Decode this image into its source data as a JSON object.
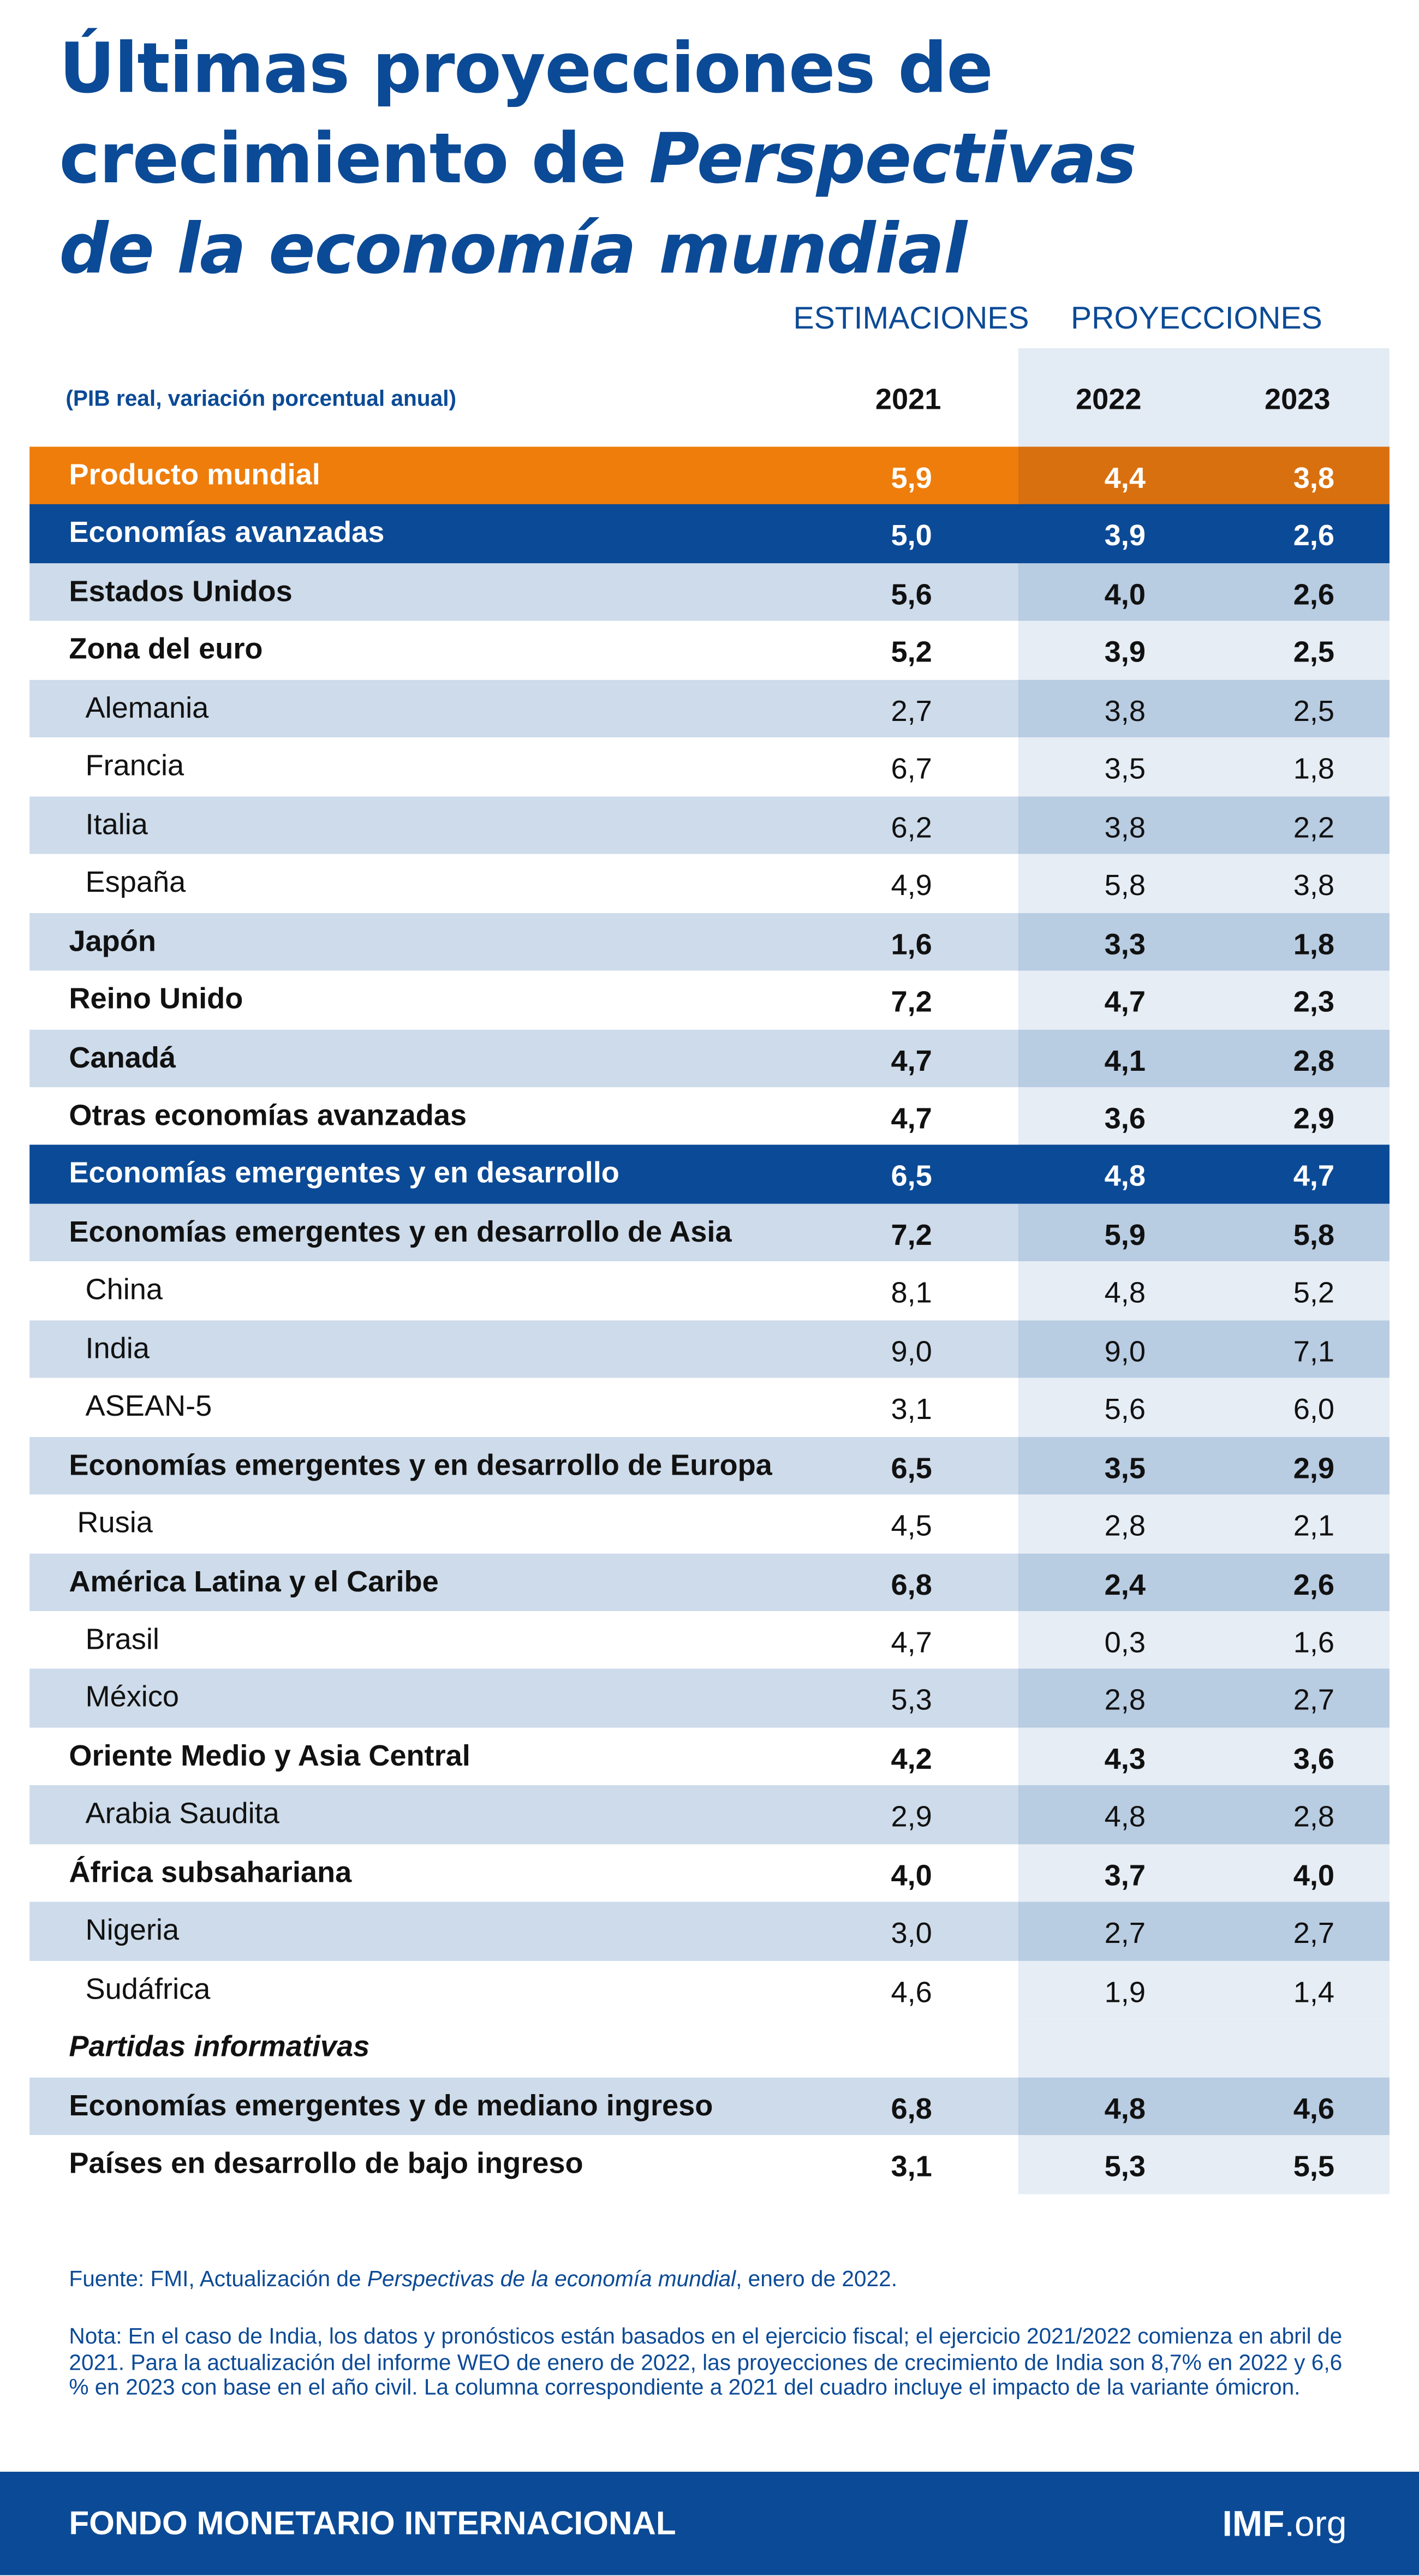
{
  "header": {
    "title": [
      "Últimas proyecciones de",
      "crecimiento de",
      "Perspectivas",
      "de la economía mundial"
    ],
    "estimates": "ESTIMACIONES",
    "projections": "PROYECCIONES",
    "subtitle": "(PIB real, variación porcentual anual)",
    "columns": [
      "2021",
      "2022",
      "2023"
    ]
  },
  "table": {
    "rows": [
      {
        "label": "Producto mundial",
        "values": [
          "5,9",
          "4,4",
          "3,8"
        ]
      },
      {
        "label": "Economías avanzadas",
        "values": [
          "5,0",
          "3,9",
          "2,6"
        ]
      },
      {
        "label": "Estados Unidos",
        "values": [
          "5,6",
          "4,0",
          "2,6"
        ]
      },
      {
        "label": "Zona del euro",
        "values": [
          "5,2",
          "3,9",
          "2,5"
        ]
      },
      {
        "label": "Alemania",
        "values": [
          "2,7",
          "3,8",
          "2,5"
        ]
      },
      {
        "label": "Francia",
        "values": [
          "6,7",
          "3,5",
          "1,8"
        ]
      },
      {
        "label": "Italia",
        "values": [
          "6,2",
          "3,8",
          "2,2"
        ]
      },
      {
        "label": "España",
        "values": [
          "4,9",
          "5,8",
          "3,8"
        ]
      },
      {
        "label": "Japón",
        "values": [
          "1,6",
          "3,3",
          "1,8"
        ]
      },
      {
        "label": "Reino Unido",
        "values": [
          "7,2",
          "4,7",
          "2,3"
        ]
      },
      {
        "label": "Canadá",
        "values": [
          "4,7",
          "4,1",
          "2,8"
        ]
      },
      {
        "label": "Otras economías avanzadas",
        "values": [
          "4,7",
          "3,6",
          "2,9"
        ]
      },
      {
        "label": "Economías emergentes y en desarrollo",
        "values": [
          "6,5",
          "4,8",
          "4,7"
        ]
      },
      {
        "label": "Economías emergentes y en desarrollo de Asia",
        "values": [
          "7,2",
          "5,9",
          "5,8"
        ]
      },
      {
        "label": "China",
        "values": [
          "8,1",
          "4,8",
          "5,2"
        ]
      },
      {
        "label": "India",
        "values": [
          "9,0",
          "9,0",
          "7,1"
        ]
      },
      {
        "label": "ASEAN-5",
        "values": [
          "3,1",
          "5,6",
          "6,0"
        ]
      },
      {
        "label": "Economías emergentes y en desarrollo de Europa",
        "values": [
          "6,5",
          "3,5",
          "2,9"
        ]
      },
      {
        "label": "Rusia",
        "values": [
          "4,5",
          "2,8",
          "2,1"
        ]
      },
      {
        "label": "América Latina y el Caribe",
        "values": [
          "6,8",
          "2,4",
          "2,6"
        ]
      },
      {
        "label": "Brasil",
        "values": [
          "4,7",
          "0,3",
          "1,6"
        ]
      },
      {
        "label": "México",
        "values": [
          "5,3",
          "2,8",
          "2,7"
        ]
      },
      {
        "label": "Oriente Medio y Asia Central",
        "values": [
          "4,2",
          "4,3",
          "3,6"
        ]
      },
      {
        "label": "Arabia Saudita",
        "values": [
          "2,9",
          "4,8",
          "2,8"
        ]
      },
      {
        "label": "África subsahariana",
        "values": [
          "4,0",
          "3,7",
          "4,0"
        ]
      },
      {
        "label": "Nigeria",
        "values": [
          "3,0",
          "2,7",
          "2,7"
        ]
      },
      {
        "label": "Sudáfrica",
        "values": [
          "4,6",
          "1,9",
          "1,4"
        ]
      },
      {
        "label": "Partidas informativas"
      },
      {
        "label": "Economías emergentes y de mediano ingreso",
        "values": [
          "6,8",
          "4,8",
          "4,6"
        ]
      },
      {
        "label": "Países en desarrollo de bajo ingreso",
        "values": [
          "3,1",
          "5,3",
          "5,5"
        ]
      }
    ]
  },
  "notes": {
    "source": [
      "Fuente: FMI, Actualización de",
      "Perspectivas de la economía mundial",
      ", enero de 2022."
    ],
    "note": "Nota: En el caso de India, los datos y pronósticos están basados en el ejercicio fiscal; el ejercicio 2021/2022 comienza en abril de 2021. Para la actualización del informe WEO de enero de 2022, las proyecciones de crecimiento de India son 8,7% en 2022 y 6,6 % en 2023 con base en el año civil. La columna correspondiente a 2021 del cuadro incluye el impacto de la variante ómicron."
  },
  "footer": {
    "org": "FONDO MONETARIO INTERNACIONAL",
    "site_bold": "IMF",
    "site_rest": ".org"
  }
}
